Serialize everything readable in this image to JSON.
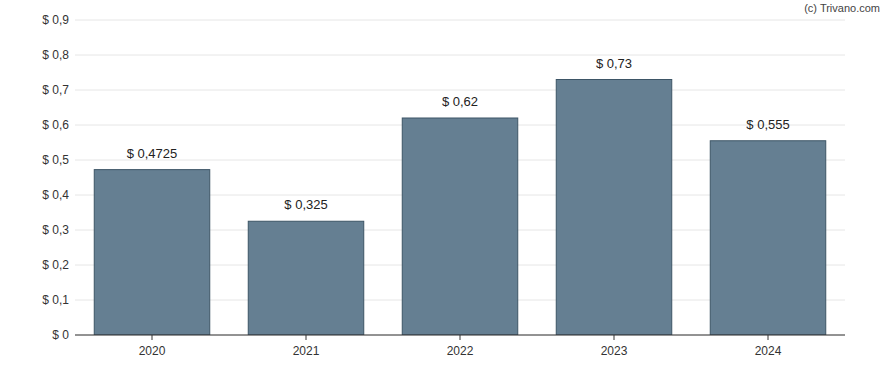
{
  "chart_data": {
    "type": "bar",
    "annotations": [
      "(c) Trivano.com"
    ],
    "categories": [
      "2020",
      "2021",
      "2022",
      "2023",
      "2024"
    ],
    "values": [
      0.4725,
      0.325,
      0.62,
      0.73,
      0.555
    ],
    "value_labels": [
      "$ 0,4725",
      "$ 0,325",
      "$ 0,62",
      "$ 0,73",
      "$ 0,555"
    ],
    "color": "#657f92",
    "ylim": [
      0,
      0.9
    ],
    "yticks": [
      {
        "value": 0,
        "label": "$ 0"
      },
      {
        "value": 0.1,
        "label": "$ 0,1"
      },
      {
        "value": 0.2,
        "label": "$ 0,2"
      },
      {
        "value": 0.3,
        "label": "$ 0,3"
      },
      {
        "value": 0.4,
        "label": "$ 0,4"
      },
      {
        "value": 0.5,
        "label": "$ 0,5"
      },
      {
        "value": 0.6,
        "label": "$ 0,6"
      },
      {
        "value": 0.7,
        "label": "$ 0,7"
      },
      {
        "value": 0.8,
        "label": "$ 0,8"
      },
      {
        "value": 0.9,
        "label": "$ 0,9"
      }
    ],
    "grid": true,
    "data_labels": true
  }
}
